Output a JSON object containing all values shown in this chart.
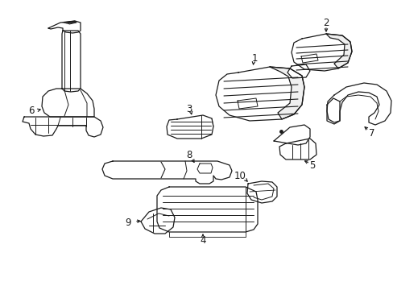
{
  "bg_color": "#ffffff",
  "line_color": "#1a1a1a",
  "line_width": 0.9,
  "figsize": [
    4.89,
    3.6
  ],
  "dpi": 100
}
